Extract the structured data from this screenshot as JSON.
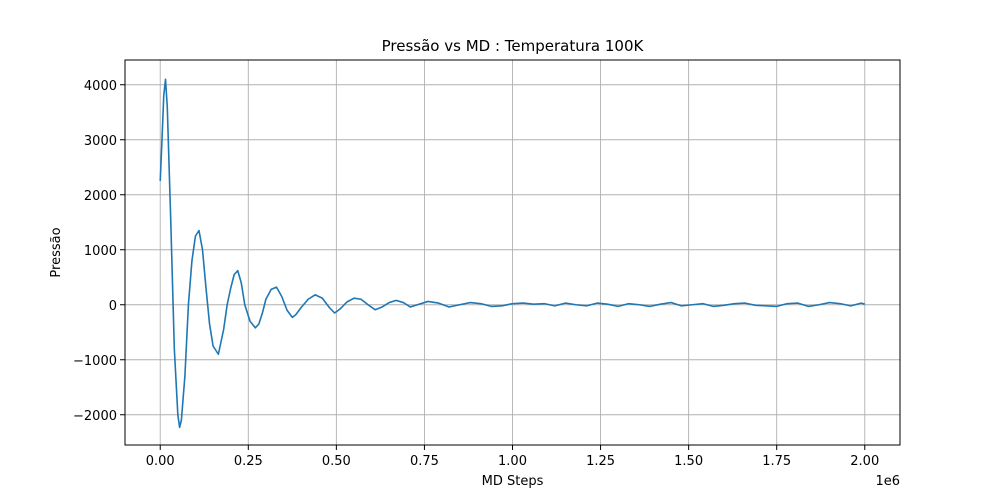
{
  "chart_data": {
    "type": "line",
    "title": "Pressão vs MD : Temperatura 100K",
    "xlabel": "MD Steps",
    "ylabel": "Pressão",
    "x_offset_label": "1e6",
    "xlim": [
      -0.1,
      2.1
    ],
    "ylim": [
      -2550,
      4450
    ],
    "xticks": [
      0.0,
      0.25,
      0.5,
      0.75,
      1.0,
      1.25,
      1.5,
      1.75,
      2.0
    ],
    "xtick_labels": [
      "0.00",
      "0.25",
      "0.50",
      "0.75",
      "1.00",
      "1.25",
      "1.50",
      "1.75",
      "2.00"
    ],
    "yticks": [
      -2000,
      -1000,
      0,
      1000,
      2000,
      3000,
      4000
    ],
    "ytick_labels": [
      "−2000",
      "−1000",
      "0",
      "1000",
      "2000",
      "3000",
      "4000"
    ],
    "grid": true,
    "line_color": "#1f77b4",
    "series": [
      {
        "x": [
          0.0,
          0.005,
          0.01,
          0.015,
          0.02,
          0.03,
          0.04,
          0.05,
          0.055,
          0.06,
          0.07,
          0.08,
          0.09,
          0.1,
          0.11,
          0.12,
          0.13,
          0.14,
          0.15,
          0.165,
          0.18,
          0.19,
          0.2,
          0.21,
          0.22,
          0.23,
          0.24,
          0.255,
          0.27,
          0.28,
          0.29,
          0.3,
          0.315,
          0.33,
          0.345,
          0.36,
          0.375,
          0.385,
          0.4,
          0.42,
          0.44,
          0.46,
          0.48,
          0.495,
          0.51,
          0.53,
          0.55,
          0.57,
          0.59,
          0.61,
          0.63,
          0.65,
          0.67,
          0.69,
          0.71,
          0.73,
          0.76,
          0.79,
          0.82,
          0.85,
          0.88,
          0.91,
          0.94,
          0.97,
          1.0,
          1.03,
          1.06,
          1.09,
          1.12,
          1.15,
          1.18,
          1.21,
          1.24,
          1.27,
          1.3,
          1.33,
          1.36,
          1.39,
          1.42,
          1.45,
          1.48,
          1.51,
          1.54,
          1.57,
          1.6,
          1.63,
          1.66,
          1.69,
          1.72,
          1.75,
          1.78,
          1.81,
          1.84,
          1.87,
          1.9,
          1.93,
          1.96,
          1.99,
          2.0
        ],
        "y": [
          2250,
          3000,
          3800,
          4100,
          3600,
          1500,
          -800,
          -2000,
          -2230,
          -2100,
          -1300,
          0,
          800,
          1250,
          1350,
          1000,
          300,
          -350,
          -750,
          -900,
          -450,
          0,
          300,
          550,
          620,
          400,
          0,
          -300,
          -420,
          -350,
          -150,
          100,
          280,
          320,
          150,
          -100,
          -230,
          -180,
          -50,
          100,
          180,
          120,
          -50,
          -150,
          -80,
          50,
          120,
          100,
          0,
          -90,
          -40,
          40,
          80,
          40,
          -40,
          0,
          60,
          30,
          -40,
          0,
          40,
          20,
          -30,
          -20,
          20,
          30,
          10,
          20,
          -20,
          30,
          0,
          -20,
          30,
          10,
          -30,
          20,
          0,
          -30,
          10,
          40,
          -20,
          0,
          20,
          -30,
          -10,
          20,
          30,
          -10,
          -20,
          -30,
          20,
          30,
          -30,
          0,
          40,
          20,
          -20,
          30,
          10
        ]
      }
    ]
  }
}
